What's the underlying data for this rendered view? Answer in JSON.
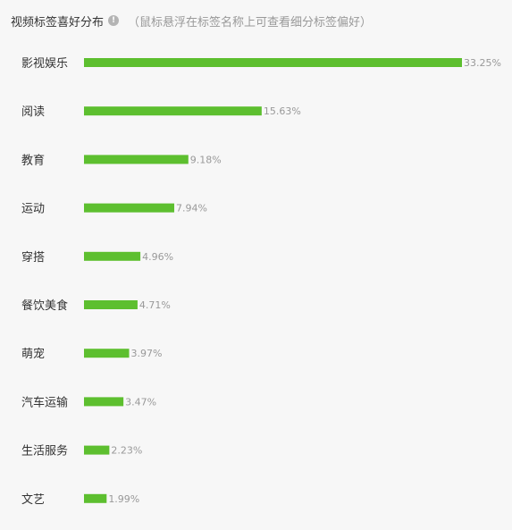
{
  "header": {
    "title": "视频标签喜好分布",
    "info_icon": "info-icon",
    "hint": "（鼠标悬浮在标签名称上可查看细分标签偏好）"
  },
  "colors": {
    "bar": "#5dbf2f",
    "background": "#f7f7f7"
  },
  "chart_data": {
    "type": "bar",
    "orientation": "horizontal",
    "categories": [
      "影视娱乐",
      "阅读",
      "教育",
      "运动",
      "穿搭",
      "餐饮美食",
      "萌宠",
      "汽车运输",
      "生活服务",
      "文艺"
    ],
    "values": [
      33.25,
      15.63,
      9.18,
      7.94,
      4.96,
      4.71,
      3.97,
      3.47,
      2.23,
      1.99
    ],
    "value_labels": [
      "33.25%",
      "15.63%",
      "9.18%",
      "7.94%",
      "4.96%",
      "4.71%",
      "3.97%",
      "3.47%",
      "2.23%",
      "1.99%"
    ],
    "unit": "%",
    "xlim": [
      0,
      33.25
    ],
    "grid": false,
    "legend": "none"
  }
}
